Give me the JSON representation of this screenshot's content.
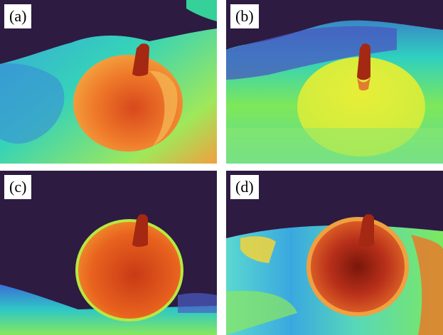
{
  "panels": [
    {
      "label": "(a)"
    },
    {
      "label": "(b)"
    },
    {
      "label": "(c)"
    },
    {
      "label": "(d)"
    }
  ],
  "colors": {
    "background_dark": "#2d1b42",
    "near_blue": "#3b7bd8",
    "cyan": "#2fd3c8",
    "green": "#5ee86a",
    "yellow": "#d8f23a",
    "orange": "#f0802a",
    "red": "#b82a12",
    "dark_red": "#6e1408"
  }
}
